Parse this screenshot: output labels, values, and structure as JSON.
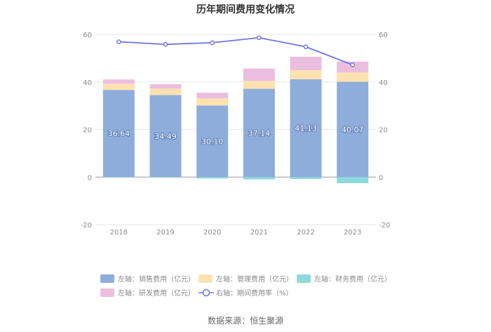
{
  "chart_data": {
    "type": "bar",
    "title": "历年期间费用变化情况",
    "categories": [
      "2018",
      "2019",
      "2020",
      "2021",
      "2022",
      "2023"
    ],
    "stacked": true,
    "left_axis": {
      "ylim": [
        -20,
        60
      ],
      "ticks": [
        "-20",
        "0",
        "20",
        "40",
        "60"
      ]
    },
    "right_axis": {
      "ylim": [
        -20,
        60
      ],
      "ticks": [
        "-20",
        "0",
        "20",
        "40",
        "60"
      ]
    },
    "grid": true,
    "legend_position": "bottom",
    "series": [
      {
        "name": "左轴：销售费用（亿元）",
        "axis": "left",
        "color": "#8eaddb",
        "values": [
          36.64,
          34.49,
          30.1,
          37.14,
          41.13,
          40.07
        ],
        "labels": [
          "36.64",
          "34.49",
          "30.10",
          "37.14",
          "41.13",
          "40.07"
        ]
      },
      {
        "name": "左轴：管理费用（亿元）",
        "axis": "left",
        "color": "#fde2b0",
        "values": [
          2.6,
          2.7,
          3.0,
          3.3,
          3.8,
          3.9
        ]
      },
      {
        "name": "左轴：财务费用（亿元）",
        "axis": "left",
        "color": "#8ed9dc",
        "values": [
          -0.1,
          -0.2,
          -0.6,
          -1.0,
          -0.8,
          -2.6
        ]
      },
      {
        "name": "左轴：研发费用（亿元）",
        "axis": "left",
        "color": "#ebbedf",
        "values": [
          1.8,
          1.9,
          2.4,
          5.2,
          5.7,
          4.6
        ]
      },
      {
        "name": "右轴：期间费用率（%）",
        "axis": "right",
        "type": "line",
        "color": "#6f74e0",
        "values": [
          56.9,
          55.8,
          56.5,
          58.6,
          54.8,
          47.2
        ]
      }
    ]
  },
  "source": "数据来源：恒生聚源"
}
